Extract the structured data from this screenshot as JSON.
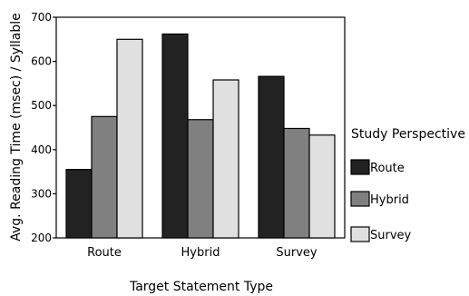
{
  "chart_data": {
    "type": "bar",
    "categories": [
      "Route",
      "Hybrid",
      "Survey"
    ],
    "series": [
      {
        "name": "Route",
        "values": [
          355,
          662,
          566
        ],
        "color": "#222222"
      },
      {
        "name": "Hybrid",
        "values": [
          475,
          468,
          448
        ],
        "color": "#808080"
      },
      {
        "name": "Survey",
        "values": [
          650,
          558,
          433
        ],
        "color": "#e0e0e0"
      }
    ],
    "xlabel": "Target Statement Type",
    "ylabel": "Avg. Reading Time (msec) / Syllable",
    "ylim": [
      200,
      700
    ],
    "yticks": [
      200,
      300,
      400,
      500,
      600,
      700
    ],
    "legend_title": "Study Perspective",
    "legend_position": "right",
    "grid": false
  }
}
